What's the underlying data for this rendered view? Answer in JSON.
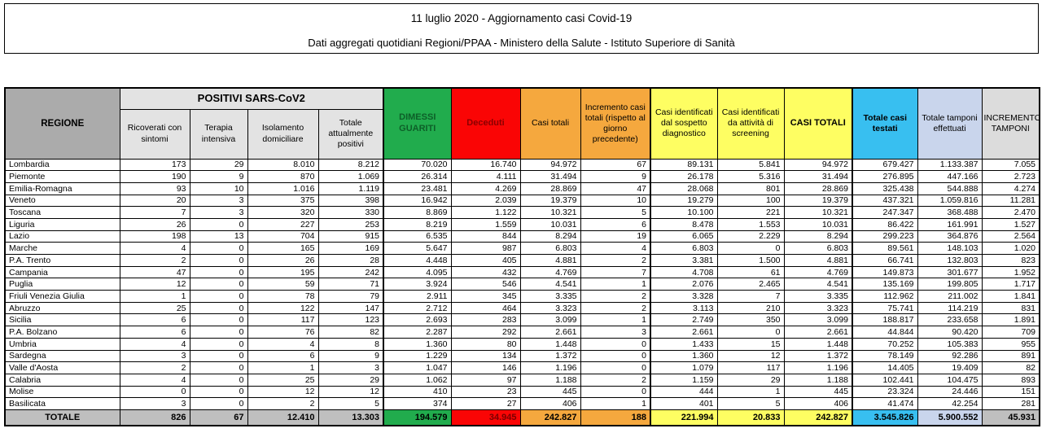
{
  "title": {
    "line1": "11 luglio 2020 - Aggiornamento casi Covid-19",
    "line2": "Dati aggregati quotidiani Regioni/PPAA - Ministero della Salute - Istituto Superiore di Sanità"
  },
  "colors": {
    "header_gray": "#ababab",
    "subheader_gray": "#e3e3e3",
    "green": "#21ac4d",
    "red": "#fa0505",
    "dark_red_text": "#8b0000",
    "orange": "#f5a83e",
    "yellow": "#fefe62",
    "cyan": "#38bff0",
    "periwinkle": "#c9d5ec",
    "light_gray": "#dcdcdc",
    "total_row_gray": "#bfbfbf"
  },
  "chart_data": {
    "type": "table",
    "title": "11 luglio 2020 - Aggiornamento casi Covid-19",
    "subtitle": "Dati aggregati quotidiani Regioni/PPAA - Ministero della Salute - Istituto Superiore di Sanità",
    "positivi_group": "POSITIVI SARS-CoV2",
    "columns": [
      "REGIONE",
      "Ricoverati con sintomi",
      "Terapia intensiva",
      "Isolamento domiciliare",
      "Totale attualmente positivi",
      "DIMESSI GUARITI",
      "Deceduti",
      "Casi totali",
      "Incremento casi totali (rispetto al giorno precedente)",
      "Casi identificati dal sospetto diagnostico",
      "Casi identificati da attività di screening",
      "CASI TOTALI",
      "Totale casi testati",
      "Totale tamponi effettuati",
      "INCREMENTO TAMPONI"
    ],
    "rows": [
      {
        "region": "Lombardia",
        "values": [
          "173",
          "29",
          "8.010",
          "8.212",
          "70.020",
          "16.740",
          "94.972",
          "67",
          "89.131",
          "5.841",
          "94.972",
          "679.427",
          "1.133.387",
          "7.055"
        ]
      },
      {
        "region": "Piemonte",
        "values": [
          "190",
          "9",
          "870",
          "1.069",
          "26.314",
          "4.111",
          "31.494",
          "9",
          "26.178",
          "5.316",
          "31.494",
          "276.895",
          "447.166",
          "2.723"
        ]
      },
      {
        "region": "Emilia-Romagna",
        "values": [
          "93",
          "10",
          "1.016",
          "1.119",
          "23.481",
          "4.269",
          "28.869",
          "47",
          "28.068",
          "801",
          "28.869",
          "325.438",
          "544.888",
          "4.274"
        ]
      },
      {
        "region": "Veneto",
        "values": [
          "20",
          "3",
          "375",
          "398",
          "16.942",
          "2.039",
          "19.379",
          "10",
          "19.279",
          "100",
          "19.379",
          "437.321",
          "1.059.816",
          "11.281"
        ]
      },
      {
        "region": "Toscana",
        "values": [
          "7",
          "3",
          "320",
          "330",
          "8.869",
          "1.122",
          "10.321",
          "5",
          "10.100",
          "221",
          "10.321",
          "247.347",
          "368.488",
          "2.470"
        ]
      },
      {
        "region": "Liguria",
        "values": [
          "26",
          "0",
          "227",
          "253",
          "8.219",
          "1.559",
          "10.031",
          "6",
          "8.478",
          "1.553",
          "10.031",
          "86.422",
          "161.991",
          "1.527"
        ]
      },
      {
        "region": "Lazio",
        "values": [
          "198",
          "13",
          "704",
          "915",
          "6.535",
          "844",
          "8.294",
          "19",
          "6.065",
          "2.229",
          "8.294",
          "299.223",
          "364.876",
          "2.564"
        ]
      },
      {
        "region": "Marche",
        "values": [
          "4",
          "0",
          "165",
          "169",
          "5.647",
          "987",
          "6.803",
          "4",
          "6.803",
          "0",
          "6.803",
          "89.561",
          "148.103",
          "1.020"
        ]
      },
      {
        "region": "P.A. Trento",
        "values": [
          "2",
          "0",
          "26",
          "28",
          "4.448",
          "405",
          "4.881",
          "2",
          "3.381",
          "1.500",
          "4.881",
          "66.741",
          "132.803",
          "823"
        ]
      },
      {
        "region": "Campania",
        "values": [
          "47",
          "0",
          "195",
          "242",
          "4.095",
          "432",
          "4.769",
          "7",
          "4.708",
          "61",
          "4.769",
          "149.873",
          "301.677",
          "1.952"
        ]
      },
      {
        "region": "Puglia",
        "values": [
          "12",
          "0",
          "59",
          "71",
          "3.924",
          "546",
          "4.541",
          "1",
          "2.076",
          "2.465",
          "4.541",
          "135.169",
          "199.805",
          "1.717"
        ]
      },
      {
        "region": "Friuli Venezia Giulia",
        "values": [
          "1",
          "0",
          "78",
          "79",
          "2.911",
          "345",
          "3.335",
          "2",
          "3.328",
          "7",
          "3.335",
          "112.962",
          "211.002",
          "1.841"
        ]
      },
      {
        "region": "Abruzzo",
        "values": [
          "25",
          "0",
          "122",
          "147",
          "2.712",
          "464",
          "3.323",
          "2",
          "3.113",
          "210",
          "3.323",
          "75.741",
          "114.219",
          "831"
        ]
      },
      {
        "region": "Sicilia",
        "values": [
          "6",
          "0",
          "117",
          "123",
          "2.693",
          "283",
          "3.099",
          "1",
          "2.749",
          "350",
          "3.099",
          "188.817",
          "233.658",
          "1.891"
        ]
      },
      {
        "region": "P.A. Bolzano",
        "values": [
          "6",
          "0",
          "76",
          "82",
          "2.287",
          "292",
          "2.661",
          "3",
          "2.661",
          "0",
          "2.661",
          "44.844",
          "90.420",
          "709"
        ]
      },
      {
        "region": "Umbria",
        "values": [
          "4",
          "0",
          "4",
          "8",
          "1.360",
          "80",
          "1.448",
          "0",
          "1.433",
          "15",
          "1.448",
          "70.252",
          "105.383",
          "955"
        ]
      },
      {
        "region": "Sardegna",
        "values": [
          "3",
          "0",
          "6",
          "9",
          "1.229",
          "134",
          "1.372",
          "0",
          "1.360",
          "12",
          "1.372",
          "78.149",
          "92.286",
          "891"
        ]
      },
      {
        "region": "Valle d'Aosta",
        "values": [
          "2",
          "0",
          "1",
          "3",
          "1.047",
          "146",
          "1.196",
          "0",
          "1.079",
          "117",
          "1.196",
          "14.405",
          "19.409",
          "82"
        ]
      },
      {
        "region": "Calabria",
        "values": [
          "4",
          "0",
          "25",
          "29",
          "1.062",
          "97",
          "1.188",
          "2",
          "1.159",
          "29",
          "1.188",
          "102.441",
          "104.475",
          "893"
        ]
      },
      {
        "region": "Molise",
        "values": [
          "0",
          "0",
          "12",
          "12",
          "410",
          "23",
          "445",
          "0",
          "444",
          "1",
          "445",
          "23.324",
          "24.446",
          "151"
        ]
      },
      {
        "region": "Basilicata",
        "values": [
          "3",
          "0",
          "2",
          "5",
          "374",
          "27",
          "406",
          "1",
          "401",
          "5",
          "406",
          "41.474",
          "42.254",
          "281"
        ]
      }
    ],
    "total": {
      "label": "TOTALE",
      "values": [
        "826",
        "67",
        "12.410",
        "13.303",
        "194.579",
        "34.945",
        "242.827",
        "188",
        "221.994",
        "20.833",
        "242.827",
        "3.545.826",
        "5.900.552",
        "45.931"
      ]
    }
  }
}
